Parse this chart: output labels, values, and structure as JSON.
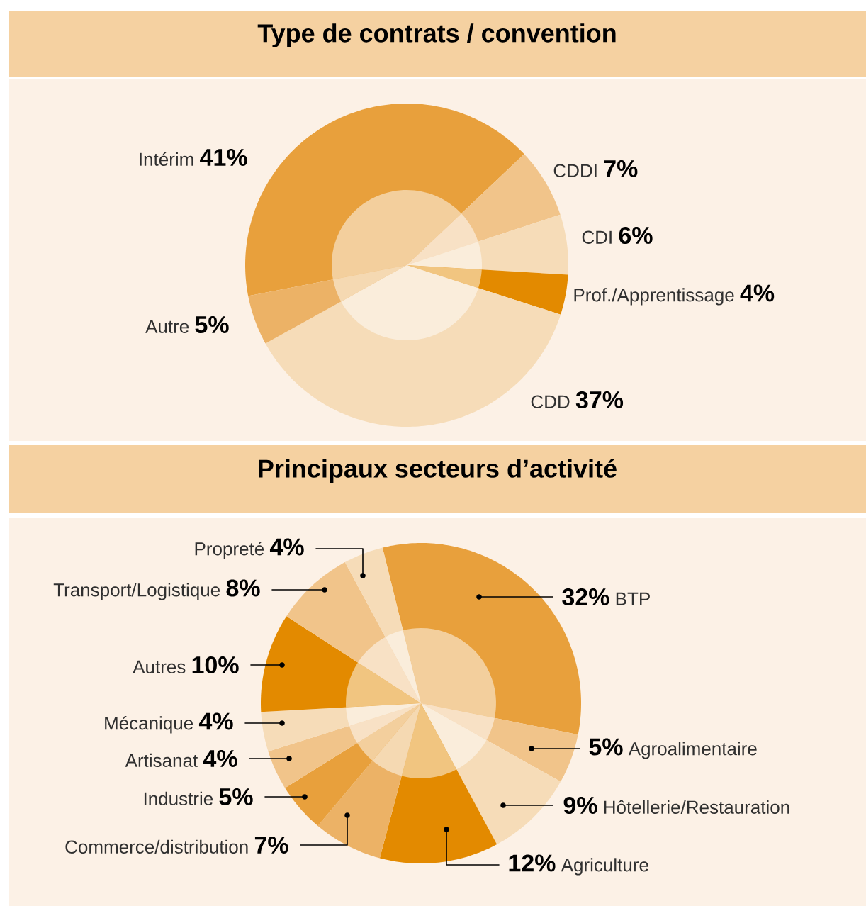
{
  "chart_data": [
    {
      "type": "pie",
      "title": "Type de contrats / convention",
      "categories": [
        "Intérim",
        "CDDI",
        "CDI",
        "Prof./Apprentissage",
        "CDD",
        "Autre"
      ],
      "values": [
        41,
        7,
        6,
        4,
        37,
        5
      ],
      "value_labels": [
        "41%",
        "7%",
        "6%",
        "4%",
        "37%",
        "5%"
      ],
      "colors": [
        "#e8a03c",
        "#f1c48a",
        "#f6dcb8",
        "#e38a00",
        "#f6dcb8",
        "#ecb266"
      ]
    },
    {
      "type": "pie",
      "title": "Principaux secteurs d’activité",
      "categories": [
        "BTP",
        "Agroalimentaire",
        "Hôtellerie/Restauration",
        "Agriculture",
        "Commerce/distribution",
        "Industrie",
        "Artisanat",
        "Mécanique",
        "Autres",
        "Transport/Logistique",
        "Propreté"
      ],
      "values": [
        32,
        5,
        9,
        12,
        7,
        5,
        4,
        4,
        10,
        8,
        4
      ],
      "value_labels": [
        "32%",
        "5%",
        "9%",
        "12%",
        "7%",
        "5%",
        "4%",
        "4%",
        "10%",
        "8%",
        "4%"
      ],
      "colors": [
        "#e8a03c",
        "#f1c48a",
        "#f6dcb8",
        "#e38a00",
        "#ecb266",
        "#e8a03c",
        "#f1c48a",
        "#f6dcb8",
        "#e38a00",
        "#f1c48a",
        "#f6dcb8"
      ]
    }
  ]
}
